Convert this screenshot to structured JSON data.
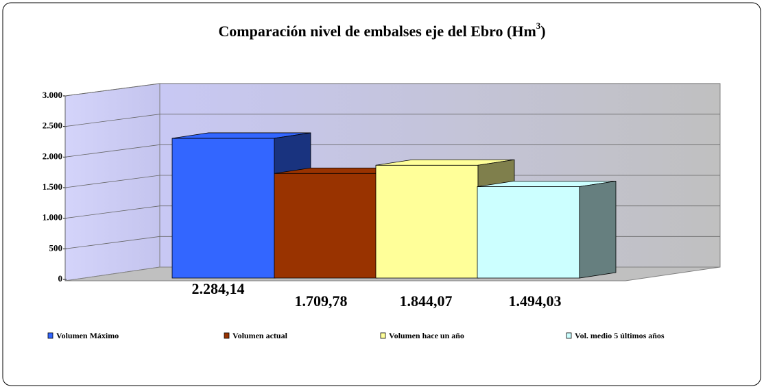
{
  "chart_data": {
    "type": "bar3d",
    "title_parts": [
      "Comparación nivel de embalses eje del Ebro (Hm",
      "3",
      ")"
    ],
    "series": [
      {
        "name": "Volumen Máximo",
        "color": "#3366ff",
        "values": [
          2284.14
        ],
        "value_labels": [
          "2.284,14"
        ]
      },
      {
        "name": "Volumen actual",
        "color": "#993300",
        "values": [
          1709.78
        ],
        "value_labels": [
          "1.709,78"
        ]
      },
      {
        "name": "Volumen hace un año",
        "color": "#ffff99",
        "values": [
          1844.07
        ],
        "value_labels": [
          "1.844,07"
        ]
      },
      {
        "name": "Vol. medio 5 últimos años",
        "color": "#ccffff",
        "values": [
          1494.03
        ],
        "value_labels": [
          "1.494,03"
        ]
      }
    ],
    "ylim": [
      0,
      3000
    ],
    "yticks": [
      0,
      500,
      {
        "value": 1000,
        "label": "1.000"
      },
      {
        "value": 1500,
        "label": "1.500"
      },
      {
        "value": 2000,
        "label": "2.000"
      },
      {
        "value": 2500,
        "label": "2.500"
      },
      {
        "value": 3000,
        "label": "3.000"
      }
    ],
    "grid": true,
    "legend": "bottom"
  }
}
